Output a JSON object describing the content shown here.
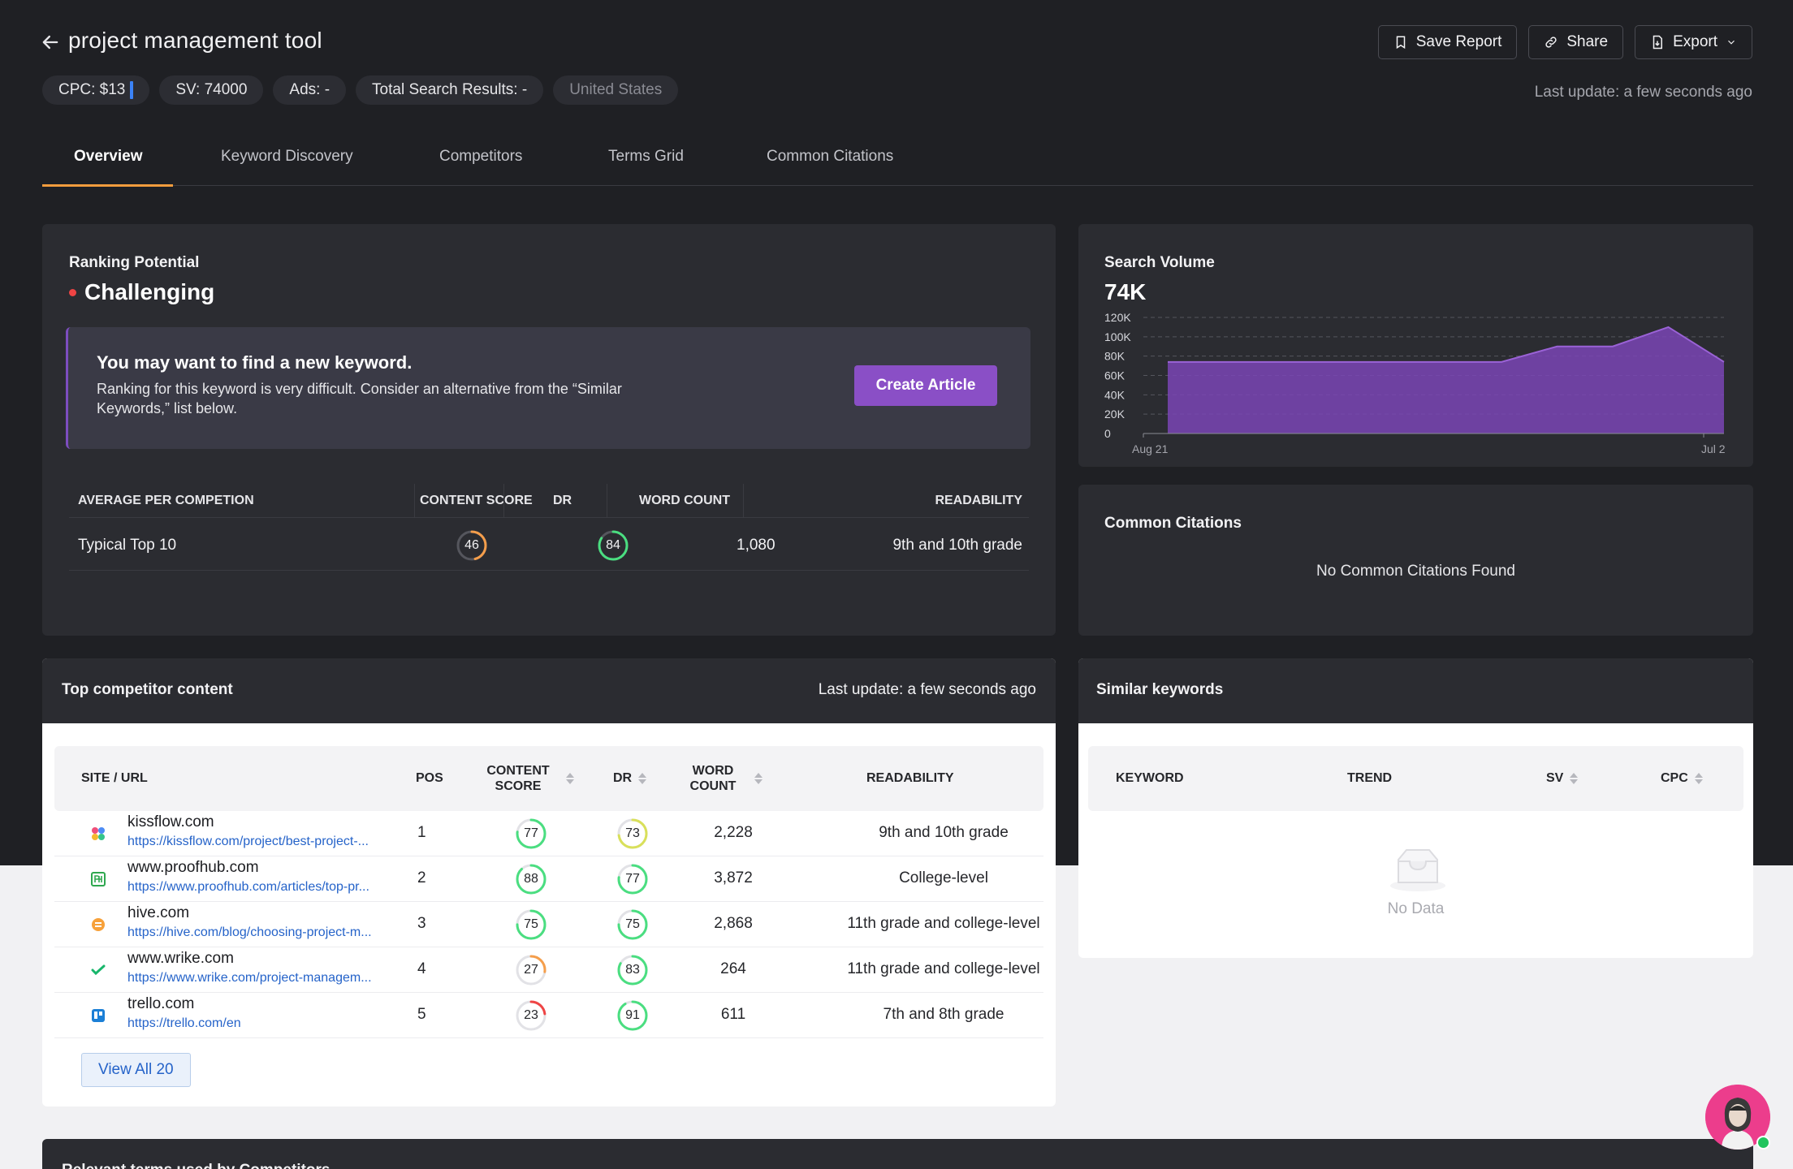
{
  "header": {
    "title": "project management tool",
    "chips": {
      "cpc": "CPC: $13",
      "sv": "SV: 74000",
      "ads": "Ads: -",
      "total": "Total Search Results: -",
      "country": "United States"
    },
    "buttons": {
      "save": "Save Report",
      "share": "Share",
      "export": "Export"
    },
    "last_update": "Last update: a few seconds ago"
  },
  "tabs": [
    "Overview",
    "Keyword Discovery",
    "Competitors",
    "Terms Grid",
    "Common Citations"
  ],
  "active_tab": "Overview",
  "ranking": {
    "label": "Ranking Potential",
    "value": "Challenging",
    "advice_title": "You may want to find a new keyword.",
    "advice_text": "Ranking for this keyword is very difficult. Consider an alternative from the “Similar Keywords,” list below.",
    "cta": "Create Article",
    "avg_headers": {
      "label": "AVERAGE PER COMPETION",
      "content_score": "CONTENT SCORE",
      "dr": "DR",
      "word_count": "WORD COUNT",
      "readability": "READABILITY"
    },
    "avg_row": {
      "label": "Typical Top 10",
      "content_score": 46,
      "dr": 84,
      "word_count": "1,080",
      "readability": "9th and 10th grade"
    }
  },
  "search_volume": {
    "label": "Search Volume",
    "value": "74K"
  },
  "chart_data": {
    "type": "area",
    "title": "Search Volume",
    "x": [
      "Aug 21",
      "",
      "",
      "",
      "",
      "",
      "",
      "",
      "",
      "",
      "Jul 2"
    ],
    "x_tick_labels": [
      "Aug 21",
      "Jul 2"
    ],
    "values": [
      74000,
      74000,
      74000,
      74000,
      74000,
      74000,
      74000,
      90000,
      90000,
      110000,
      74000
    ],
    "y_ticks": [
      "120K",
      "100K",
      "80K",
      "60K",
      "40K",
      "20K",
      "0"
    ],
    "ylim": [
      0,
      120000
    ],
    "grid": true,
    "color": "#7a45b5"
  },
  "common_citations": {
    "label": "Common Citations",
    "empty": "No Common Citations Found"
  },
  "top_competitors": {
    "label": "Top competitor content",
    "last_update": "Last update: a few seconds ago",
    "headers": {
      "site": "SITE / URL",
      "pos": "POS",
      "content_score": "CONTENT SCORE",
      "dr": "DR",
      "word_count": "WORD COUNT",
      "readability": "READABILITY"
    },
    "rows": [
      {
        "site": "kissflow.com",
        "url": "https://kissflow.com/project/best-project-...",
        "pos": "1",
        "content_score": 77,
        "dr": 73,
        "word_count": "2,228",
        "readability": "9th and 10th grade",
        "icon": "kissflow-favicon"
      },
      {
        "site": "www.proofhub.com",
        "url": "https://www.proofhub.com/articles/top-pr...",
        "pos": "2",
        "content_score": 88,
        "dr": 77,
        "word_count": "3,872",
        "readability": "College-level",
        "icon": "proofhub-favicon"
      },
      {
        "site": "hive.com",
        "url": "https://hive.com/blog/choosing-project-m...",
        "pos": "3",
        "content_score": 75,
        "dr": 75,
        "word_count": "2,868",
        "readability": "11th grade and college-level",
        "icon": "hive-favicon"
      },
      {
        "site": "www.wrike.com",
        "url": "https://www.wrike.com/project-managem...",
        "pos": "4",
        "content_score": 27,
        "dr": 83,
        "word_count": "264",
        "readability": "11th grade and college-level",
        "icon": "wrike-favicon"
      },
      {
        "site": "trello.com",
        "url": "https://trello.com/en",
        "pos": "5",
        "content_score": 23,
        "dr": 91,
        "word_count": "611",
        "readability": "7th and 8th grade",
        "icon": "trello-favicon"
      }
    ],
    "view_all": "View All 20"
  },
  "similar_keywords": {
    "label": "Similar keywords",
    "headers": {
      "keyword": "KEYWORD",
      "trend": "TREND",
      "sv": "SV",
      "cpc": "CPC"
    },
    "empty": "No Data"
  },
  "relevant_terms": {
    "label": "Relevant terms used by Competitors"
  },
  "colors": {
    "accent_tab": "#f39c3d",
    "purple": "#8a4fc6",
    "score_green": "#4ade80",
    "score_orange": "#f59e4b",
    "score_red": "#ef4444",
    "score_yellow": "#d9e05a"
  }
}
